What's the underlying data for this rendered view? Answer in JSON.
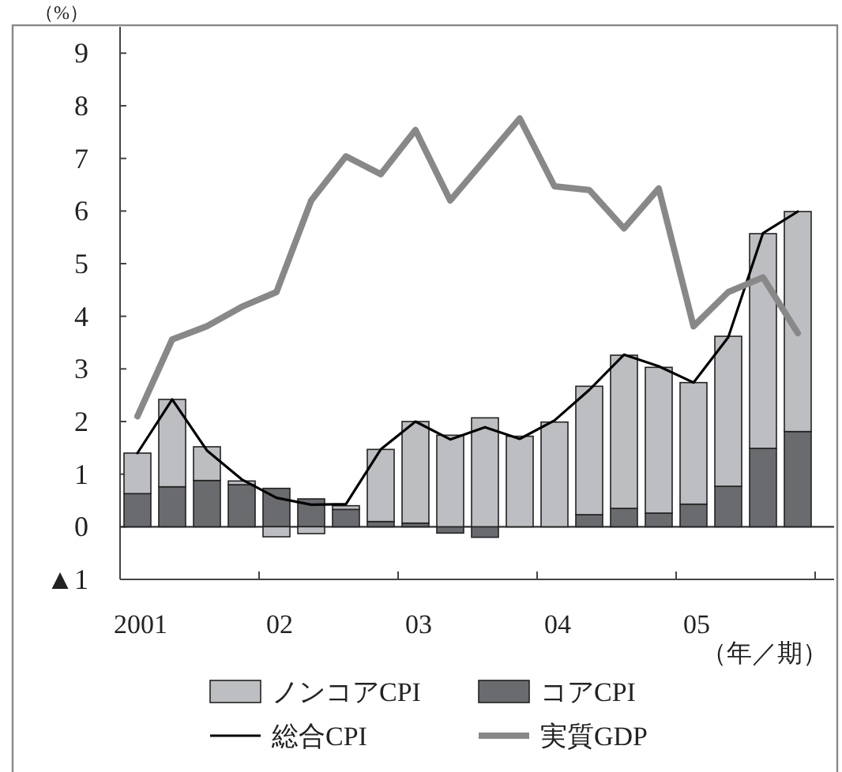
{
  "chart_data": {
    "type": "bar",
    "ylabel": "（%）",
    "xlabel": "（年／期）",
    "categories": [
      "2001",
      null,
      null,
      null,
      "02",
      null,
      null,
      null,
      "03",
      null,
      null,
      null,
      "04",
      null,
      null,
      null,
      "05",
      null,
      null,
      null
    ],
    "stacked": true,
    "legend": "bottom",
    "ylim": [
      -1,
      9.5
    ],
    "yticks": [
      {
        "value": -1,
        "label": "▲1"
      },
      0,
      1,
      2,
      3,
      4,
      5,
      6,
      7,
      8,
      9
    ],
    "series": [
      {
        "name": "コアCPI",
        "color": "#6a6b6f",
        "values": [
          0.63,
          0.76,
          0.88,
          0.8,
          0.73,
          0.53,
          0.33,
          0.1,
          0.07,
          -0.12,
          -0.2,
          null,
          null,
          0.23,
          0.35,
          0.26,
          0.43,
          0.77,
          1.49,
          1.81
        ]
      },
      {
        "name": "ノンコアCPI",
        "color": "#bdbec2",
        "values": [
          0.77,
          1.66,
          0.64,
          0.07,
          -0.19,
          -0.13,
          0.07,
          1.37,
          1.93,
          1.74,
          2.07,
          1.72,
          1.99,
          2.44,
          2.91,
          2.77,
          2.31,
          2.85,
          4.08,
          4.18
        ]
      },
      {
        "name": "総合CPI",
        "type": "line",
        "color": "#000000",
        "values": [
          1.4,
          2.42,
          1.45,
          0.9,
          0.55,
          0.42,
          0.43,
          1.47,
          2.0,
          1.66,
          1.89,
          1.67,
          2.02,
          2.6,
          3.27,
          3.05,
          2.74,
          3.6,
          5.58,
          5.99
        ]
      },
      {
        "name": "実質GDP",
        "type": "line",
        "color": "#888888",
        "values": [
          2.1,
          3.56,
          3.81,
          4.18,
          4.46,
          6.2,
          7.04,
          6.7,
          7.54,
          6.2,
          6.98,
          7.76,
          6.47,
          6.4,
          5.67,
          6.43,
          3.81,
          4.46,
          4.74,
          3.68
        ]
      }
    ]
  }
}
